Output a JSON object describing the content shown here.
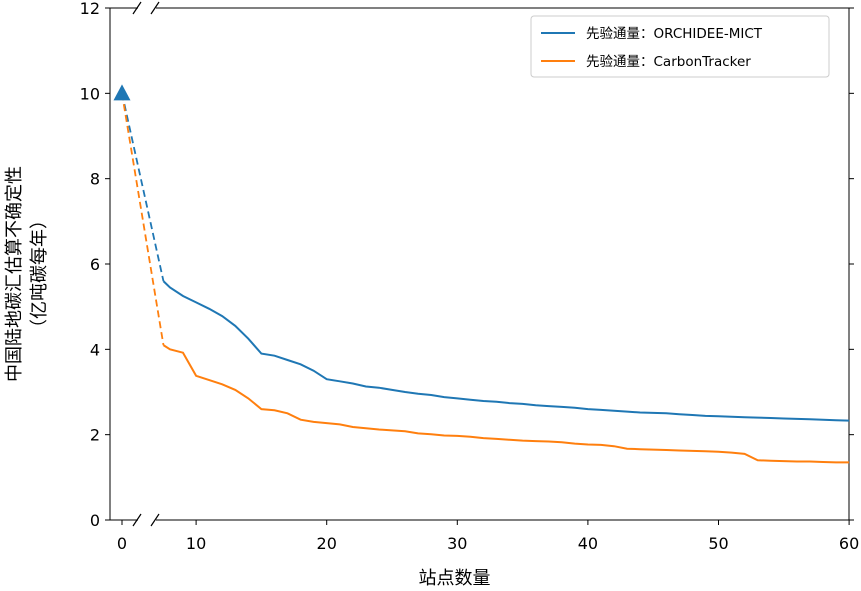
{
  "chart_data": {
    "type": "line",
    "xlabel": "站点数量",
    "ylabel_lines": [
      "中国陆地碳汇估算不确定性",
      "（亿吨碳每年）"
    ],
    "xlim": [
      -1,
      60
    ],
    "ylim": [
      0,
      12
    ],
    "x_axis_break_between": [
      0,
      7
    ],
    "x_ticks": [
      0,
      10,
      20,
      30,
      40,
      50,
      60
    ],
    "y_ticks": [
      0,
      2,
      4,
      6,
      8,
      10,
      12
    ],
    "grid": false,
    "legend_position": "top-right",
    "start_marker": {
      "x": 0,
      "y": 10.0,
      "color": "#1f77b4",
      "shape": "triangle"
    },
    "series": [
      {
        "name": "先验通量：ORCHIDEE-MICT",
        "color": "#1f77b4",
        "dashed_connector": [
          [
            0,
            10.0
          ],
          [
            7.5,
            5.6
          ]
        ],
        "x": [
          7.5,
          8,
          9,
          10,
          11,
          12,
          13,
          14,
          15,
          16,
          17,
          18,
          19,
          20,
          21,
          22,
          23,
          24,
          25,
          26,
          27,
          28,
          29,
          30,
          31,
          32,
          33,
          34,
          35,
          36,
          37,
          38,
          39,
          40,
          41,
          42,
          43,
          44,
          45,
          46,
          47,
          48,
          49,
          50,
          51,
          52,
          53,
          54,
          55,
          56,
          57,
          58,
          59,
          60
        ],
        "y": [
          5.6,
          5.45,
          5.25,
          5.1,
          4.95,
          4.78,
          4.55,
          4.25,
          3.9,
          3.85,
          3.75,
          3.65,
          3.5,
          3.3,
          3.25,
          3.2,
          3.13,
          3.1,
          3.05,
          3.0,
          2.96,
          2.93,
          2.88,
          2.85,
          2.82,
          2.79,
          2.77,
          2.74,
          2.72,
          2.69,
          2.67,
          2.65,
          2.63,
          2.6,
          2.58,
          2.56,
          2.54,
          2.52,
          2.51,
          2.5,
          2.48,
          2.46,
          2.44,
          2.43,
          2.42,
          2.41,
          2.4,
          2.39,
          2.38,
          2.37,
          2.36,
          2.35,
          2.34,
          2.33
        ]
      },
      {
        "name": "先验通量：CarbonTracker",
        "color": "#ff7f0e",
        "dashed_connector": [
          [
            0,
            10.0
          ],
          [
            7.5,
            4.1
          ]
        ],
        "x": [
          7.5,
          8,
          9,
          10,
          11,
          12,
          13,
          14,
          15,
          16,
          17,
          18,
          19,
          20,
          21,
          22,
          23,
          24,
          25,
          26,
          27,
          28,
          29,
          30,
          31,
          32,
          33,
          34,
          35,
          36,
          37,
          38,
          39,
          40,
          41,
          42,
          43,
          44,
          45,
          46,
          47,
          48,
          49,
          50,
          51,
          52,
          53,
          54,
          55,
          56,
          57,
          58,
          59,
          60
        ],
        "y": [
          4.1,
          4.0,
          3.92,
          3.38,
          3.28,
          3.18,
          3.05,
          2.85,
          2.6,
          2.57,
          2.5,
          2.35,
          2.3,
          2.27,
          2.24,
          2.18,
          2.15,
          2.12,
          2.1,
          2.08,
          2.03,
          2.01,
          1.98,
          1.97,
          1.95,
          1.92,
          1.9,
          1.88,
          1.86,
          1.85,
          1.84,
          1.82,
          1.79,
          1.77,
          1.76,
          1.73,
          1.67,
          1.66,
          1.65,
          1.64,
          1.63,
          1.62,
          1.61,
          1.6,
          1.58,
          1.55,
          1.4,
          1.39,
          1.38,
          1.37,
          1.37,
          1.36,
          1.35,
          1.35
        ]
      }
    ]
  }
}
